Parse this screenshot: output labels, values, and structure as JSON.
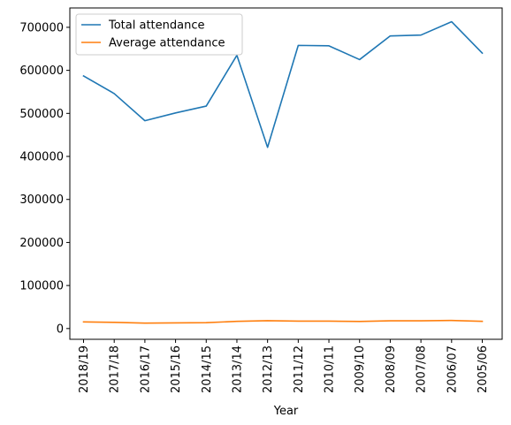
{
  "chart_data": {
    "type": "line",
    "title": "",
    "xlabel": "Year",
    "ylabel": "",
    "categories": [
      "2018/19",
      "2017/18",
      "2016/17",
      "2015/16",
      "2014/15",
      "2013/14",
      "2012/13",
      "2011/12",
      "2010/11",
      "2009/10",
      "2008/09",
      "2007/08",
      "2006/07",
      "2005/06"
    ],
    "series": [
      {
        "name": "Total attendance",
        "color": "#1f77b4",
        "values": [
          587000,
          546000,
          483000,
          501000,
          517000,
          635000,
          421000,
          658000,
          657000,
          625000,
          680000,
          682000,
          713000,
          640000
        ]
      },
      {
        "name": "Average attendance",
        "color": "#ff7f0e",
        "values": [
          15400,
          14400,
          12700,
          13200,
          13600,
          16700,
          18300,
          17300,
          17300,
          16400,
          17900,
          17900,
          18800,
          16800
        ]
      }
    ],
    "ylim": [
      -25000,
      745000
    ],
    "yticks": [
      0,
      100000,
      200000,
      300000,
      400000,
      500000,
      600000,
      700000
    ],
    "ytick_labels": [
      "0",
      "100000",
      "200000",
      "300000",
      "400000",
      "500000",
      "600000",
      "700000"
    ],
    "grid": false,
    "legend_position": "top-left"
  }
}
